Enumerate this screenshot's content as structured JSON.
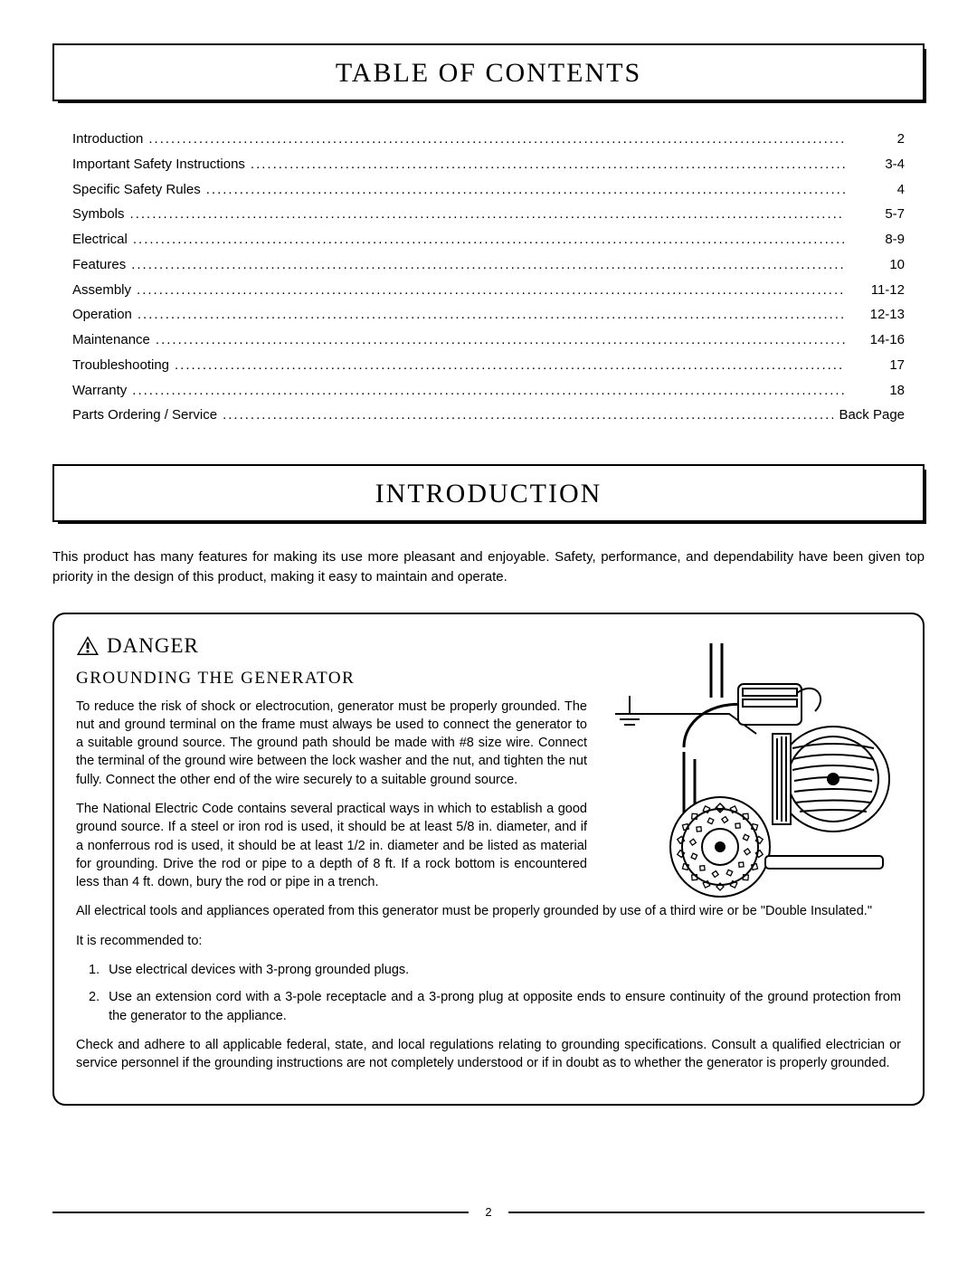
{
  "headers": {
    "toc": "TABLE OF CONTENTS",
    "intro": "INTRODUCTION"
  },
  "toc": [
    {
      "label": "Introduction",
      "page": "2"
    },
    {
      "label": "Important Safety Instructions",
      "page": "3-4"
    },
    {
      "label": "Specific Safety Rules",
      "page": "4"
    },
    {
      "label": "Symbols",
      "page": "5-7"
    },
    {
      "label": "Electrical",
      "page": "8-9"
    },
    {
      "label": "Features",
      "page": "10"
    },
    {
      "label": "Assembly",
      "page": "11-12"
    },
    {
      "label": "Operation",
      "page": "12-13"
    },
    {
      "label": "Maintenance",
      "page": "14-16"
    },
    {
      "label": "Troubleshooting",
      "page": "17"
    },
    {
      "label": "Warranty",
      "page": "18"
    },
    {
      "label": "Parts Ordering / Service",
      "page": "Back Page"
    }
  ],
  "intro_text": "This product has many features for making its use more pleasant and enjoyable. Safety, performance, and dependability have been given top priority in the design of this product, making it easy to maintain and operate.",
  "danger": {
    "label": "DANGER",
    "subhead": "GROUNDING THE GENERATOR",
    "para1": "To reduce the risk of shock or electrocution, generator must be properly grounded. The nut and ground terminal on the frame must always be used to connect the generator to a suitable ground source. The ground path should be made with #8 size wire. Connect the terminal of the ground wire between the lock washer and the nut, and tighten the nut fully. Connect the other end of the wire securely to a suitable ground source.",
    "para2": "The National Electric Code contains several practical ways in which to establish a good ground source. If a steel or iron rod is used, it should be at least 5/8 in. diameter, and if a nonferrous rod is used, it should be at least 1/2 in. diameter and be listed as material for grounding. Drive the rod or pipe to a depth of 8 ft. If a rock bottom is encountered less than 4 ft. down, bury the rod or pipe in a trench.",
    "para3": "All electrical tools and appliances operated from this generator must be properly grounded by use of a third wire or be \"Double Insulated.\"",
    "rec_intro": "It is recommended to:",
    "recs": [
      "Use electrical devices with 3-prong grounded plugs.",
      "Use an extension cord with a 3-pole receptacle and a 3-prong plug at opposite ends to ensure continuity of the ground protection from the generator to the appliance."
    ],
    "para4": "Check and adhere to all applicable federal, state, and local regulations relating to grounding specifications. Consult a qualified electrician or service personnel if the grounding instructions are not completely understood or if in doubt as to whether the generator is properly grounded."
  },
  "page_number": "2",
  "colors": {
    "text": "#000000",
    "background": "#ffffff"
  }
}
